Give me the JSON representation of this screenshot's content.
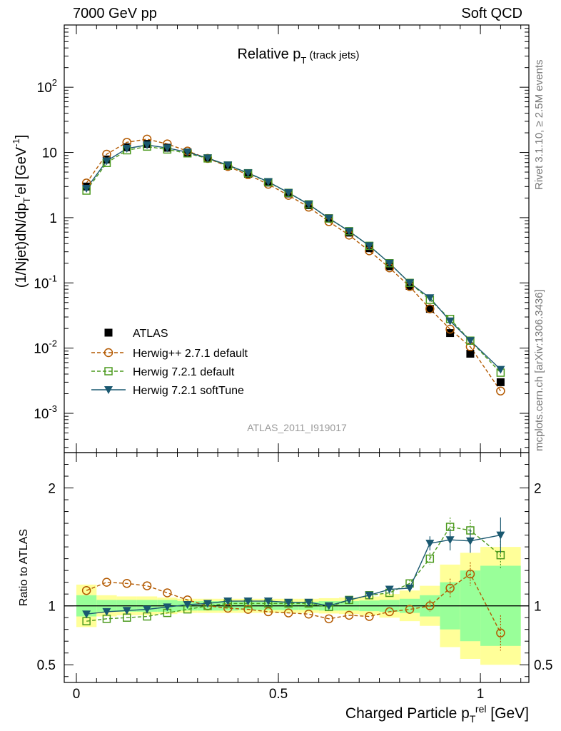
{
  "header": {
    "energy": "7000 GeV pp",
    "process": "Soft QCD"
  },
  "side_labels": {
    "rivet": "Rivet 3.1.10, ≥ 2.5M events",
    "mcplots": "mcplots.cern.ch [arXiv:1306.3436]"
  },
  "colors": {
    "atlas": "#000000",
    "herwigpp": "#b35900",
    "herwig721": "#4c9a1e",
    "softtune": "#1a5870",
    "band_stat": "#99ff99",
    "band_total": "#ffff99"
  },
  "chart_data": {
    "type": "line",
    "title": "Relative p_T (track jets)",
    "title_main": "Relative p",
    "title_sub": "T",
    "title_extra": "(track jets)",
    "analysis_id": "ATLAS_2011_I919017",
    "xlabel": "Charged Particle p",
    "xlabel_sub": "T",
    "xlabel_sup": "rel",
    "xlabel_suffix": " [GeV]",
    "xlim": [
      -0.03,
      1.12
    ],
    "x_ticks": [
      "0",
      "0.5",
      "1"
    ],
    "main": {
      "ylabel": "(1/Njet)dN/dp_T^rel [GeV^-1]",
      "ylabel_text": "(1/Njet)dN/dp",
      "ylabel_sub": "T",
      "ylabel_sup": "r",
      "ylabel_tail": "el [GeV",
      "ylabel_exp": "-1",
      "ylabel_close": "]",
      "yscale": "log",
      "ylim": [
        0.00025,
        900
      ],
      "y_ticks": [
        {
          "base": "10",
          "exp": "-3"
        },
        {
          "base": "10",
          "exp": "-2"
        },
        {
          "base": "10",
          "exp": "-1"
        },
        {
          "base": "1",
          "exp": ""
        },
        {
          "base": "10",
          "exp": ""
        },
        {
          "base": "10",
          "exp": "2"
        }
      ]
    },
    "ratio": {
      "ylabel": "Ratio to ATLAS",
      "ylim": [
        0.35,
        2.3
      ],
      "y_ticks": [
        "0.5",
        "1",
        "2"
      ]
    },
    "x": [
      0.025,
      0.075,
      0.125,
      0.175,
      0.225,
      0.275,
      0.325,
      0.375,
      0.425,
      0.475,
      0.525,
      0.575,
      0.625,
      0.675,
      0.725,
      0.775,
      0.825,
      0.875,
      0.925,
      0.975,
      1.05
    ],
    "bin_edges": [
      0,
      0.05,
      0.1,
      0.15,
      0.2,
      0.25,
      0.3,
      0.35,
      0.4,
      0.45,
      0.5,
      0.55,
      0.6,
      0.65,
      0.7,
      0.75,
      0.8,
      0.85,
      0.9,
      0.95,
      1.0,
      1.1
    ],
    "legend": [
      {
        "label": "ATLAS",
        "key": "atlas"
      },
      {
        "label": "Herwig++ 2.7.1 default",
        "key": "herwigpp"
      },
      {
        "label": "Herwig 7.2.1 default",
        "key": "herwig721"
      },
      {
        "label": "Herwig 7.2.1 softTune",
        "key": "softtune"
      }
    ],
    "series": [
      {
        "key": "atlas",
        "marker": "square",
        "values": [
          3.0,
          7.8,
          12.0,
          13.5,
          11.8,
          10.0,
          8.1,
          6.2,
          4.7,
          3.45,
          2.35,
          1.55,
          0.98,
          0.59,
          0.34,
          0.18,
          0.09,
          0.04,
          0.017,
          0.0082,
          0.003
        ]
      },
      {
        "key": "herwigpp",
        "marker": "circle",
        "values": [
          3.4,
          9.4,
          14.3,
          16.0,
          13.5,
          10.5,
          8.1,
          6.1,
          4.55,
          3.25,
          2.2,
          1.45,
          0.87,
          0.54,
          0.31,
          0.17,
          0.088,
          0.04,
          0.0195,
          0.0105,
          0.0022
        ]
      },
      {
        "key": "herwig721",
        "marker": "square-open",
        "values": [
          2.6,
          6.9,
          10.8,
          12.3,
          11.1,
          9.7,
          8.1,
          6.3,
          4.8,
          3.5,
          2.4,
          1.6,
          0.97,
          0.62,
          0.37,
          0.2,
          0.1,
          0.055,
          0.028,
          0.013,
          0.0042
        ]
      },
      {
        "key": "softtune",
        "marker": "triangle-down",
        "values": [
          2.8,
          7.4,
          11.5,
          13.0,
          11.7,
          10.1,
          8.2,
          6.4,
          4.85,
          3.55,
          2.42,
          1.6,
          0.98,
          0.62,
          0.37,
          0.2,
          0.1,
          0.059,
          0.026,
          0.013,
          0.0047
        ]
      }
    ],
    "ratio_series": [
      {
        "key": "herwigpp",
        "marker": "circle",
        "values": [
          1.13,
          1.2,
          1.19,
          1.17,
          1.11,
          1.05,
          1.0,
          0.98,
          0.97,
          0.95,
          0.94,
          0.93,
          0.89,
          0.92,
          0.91,
          0.95,
          0.97,
          1.0,
          1.15,
          1.27,
          0.77
        ],
        "err": [
          0,
          0,
          0,
          0,
          0,
          0,
          0,
          0,
          0,
          0,
          0,
          0,
          0,
          0,
          0,
          0,
          0,
          0.05,
          0.08,
          0.1,
          0.15
        ]
      },
      {
        "key": "herwig721",
        "marker": "square-open",
        "values": [
          0.87,
          0.89,
          0.9,
          0.91,
          0.94,
          0.97,
          1.0,
          1.02,
          1.02,
          1.02,
          1.02,
          1.02,
          0.99,
          1.05,
          1.09,
          1.11,
          1.19,
          1.4,
          1.67,
          1.64,
          1.43
        ],
        "err": [
          0,
          0,
          0,
          0,
          0,
          0,
          0,
          0,
          0,
          0,
          0,
          0,
          0,
          0,
          0,
          0.02,
          0.03,
          0.05,
          0.08,
          0.09,
          0.12
        ]
      },
      {
        "key": "softtune",
        "marker": "triangle-down",
        "values": [
          0.93,
          0.95,
          0.96,
          0.97,
          0.99,
          1.01,
          1.02,
          1.04,
          1.04,
          1.04,
          1.03,
          1.03,
          1.0,
          1.05,
          1.09,
          1.14,
          1.15,
          1.53,
          1.56,
          1.55,
          1.6
        ],
        "err": [
          0,
          0,
          0,
          0,
          0,
          0,
          0,
          0,
          0,
          0,
          0,
          0,
          0,
          0,
          0,
          0,
          0.03,
          0.06,
          0.09,
          0.1,
          0.15
        ]
      }
    ],
    "ratio_bands": {
      "stat_half": [
        0.09,
        0.05,
        0.05,
        0.05,
        0.05,
        0.04,
        0.04,
        0.04,
        0.035,
        0.035,
        0.035,
        0.035,
        0.04,
        0.04,
        0.045,
        0.05,
        0.06,
        0.09,
        0.2,
        0.3,
        0.34
      ],
      "total_half": [
        0.18,
        0.09,
        0.08,
        0.08,
        0.07,
        0.06,
        0.06,
        0.06,
        0.06,
        0.06,
        0.06,
        0.06,
        0.065,
        0.07,
        0.08,
        0.1,
        0.13,
        0.17,
        0.35,
        0.45,
        0.5
      ]
    }
  }
}
